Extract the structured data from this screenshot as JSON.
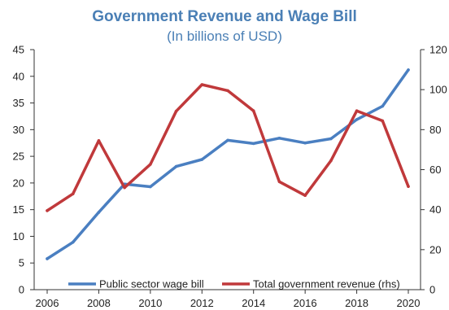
{
  "chart_data": {
    "type": "line",
    "title": "Government Revenue and Wage Bill",
    "subtitle": "(In billions of USD)",
    "title_color": "#4a7fb5",
    "x": [
      2006,
      2007,
      2008,
      2009,
      2010,
      2011,
      2012,
      2013,
      2014,
      2015,
      2016,
      2017,
      2018,
      2019,
      2020
    ],
    "x_ticks": [
      "2006",
      "2008",
      "2010",
      "2012",
      "2014",
      "2016",
      "2018",
      "2020"
    ],
    "y_left": {
      "lim": [
        0,
        45
      ],
      "ticks": [
        "0",
        "5",
        "10",
        "15",
        "20",
        "25",
        "30",
        "35",
        "40",
        "45"
      ]
    },
    "y_right": {
      "lim": [
        0,
        120
      ],
      "ticks": [
        "0",
        "20",
        "40",
        "60",
        "80",
        "100",
        "120"
      ]
    },
    "grid": false,
    "legend_position": "bottom-inside",
    "series": [
      {
        "name": "Public sector wage bill",
        "axis": "left",
        "color": "#4a7fc1",
        "values": [
          5.8,
          8.9,
          14.5,
          19.8,
          19.3,
          23.1,
          24.4,
          28.0,
          27.4,
          28.4,
          27.5,
          28.3,
          31.9,
          34.4,
          41.2
        ]
      },
      {
        "name": "Total government revenue (rhs)",
        "axis": "right",
        "color": "#c0393b",
        "values": [
          39.5,
          47.9,
          74.5,
          51.0,
          62.7,
          89.2,
          102.5,
          99.5,
          89.4,
          54.0,
          47.1,
          64.5,
          89.4,
          84.4,
          51.6
        ]
      }
    ]
  }
}
